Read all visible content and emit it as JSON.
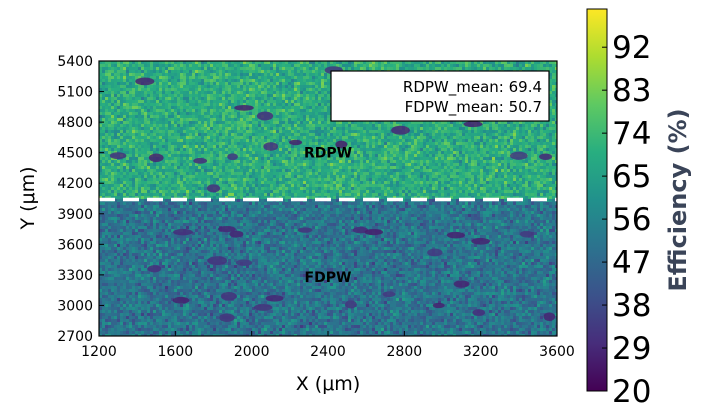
{
  "chart_data": {
    "type": "heatmap",
    "title": "",
    "xlabel": "X (μm)",
    "ylabel": "Y (μm)",
    "xlim": [
      1200,
      3600
    ],
    "ylim": [
      2700,
      5400
    ],
    "xticks": [
      1200,
      1600,
      2000,
      2400,
      2800,
      3200,
      3600
    ],
    "yticks": [
      2700,
      3000,
      3300,
      3600,
      3900,
      4200,
      4500,
      4800,
      5100,
      5400
    ],
    "colorbar": {
      "label": "Efficiency (%)",
      "range": [
        20,
        100
      ],
      "ticks": [
        20,
        29,
        38,
        47,
        56,
        65,
        74,
        83,
        92
      ],
      "colormap": "viridis"
    },
    "regions": [
      {
        "name": "RDPW",
        "y_range": [
          4040,
          5400
        ],
        "mean": 69.4
      },
      {
        "name": "FDPW",
        "y_range": [
          2700,
          4040
        ],
        "mean": 50.7
      }
    ],
    "boundary_y": 4040,
    "annotation_lines": [
      "RDPW_mean: 69.4",
      "FDPW_mean: 50.7"
    ]
  }
}
